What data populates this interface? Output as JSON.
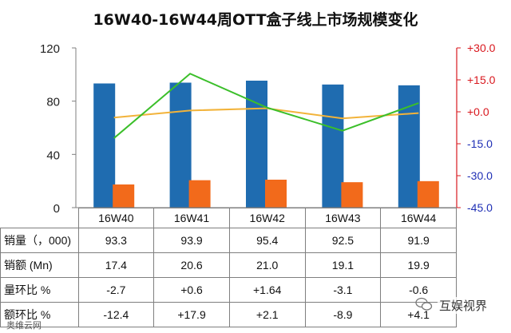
{
  "title": "16W40-16W44周OTT盒子线上市场规模变化",
  "chart_data": {
    "type": "bar",
    "categories": [
      "16W40",
      "16W41",
      "16W42",
      "16W43",
      "16W44"
    ],
    "series": [
      {
        "name": "销量（，000)",
        "values": [
          93.3,
          93.9,
          95.4,
          92.5,
          91.9
        ],
        "axis": "left",
        "kind": "bar",
        "color": "#1f6cb0"
      },
      {
        "name": "销额 (Mn)",
        "values": [
          17.4,
          20.6,
          21.0,
          19.1,
          19.9
        ],
        "axis": "left",
        "kind": "bar",
        "color": "#f26a1b"
      },
      {
        "name": "量环比 %",
        "values": [
          -2.7,
          0.6,
          1.64,
          -3.1,
          -0.6
        ],
        "axis": "right",
        "kind": "line",
        "color": "#f2b33a"
      },
      {
        "name": "额环比 %",
        "values": [
          -12.4,
          17.9,
          2.1,
          -8.9,
          4.1
        ],
        "axis": "right",
        "kind": "line",
        "color": "#3bbf2a"
      }
    ],
    "y_left": {
      "ylim": [
        0,
        120
      ],
      "ticks": [
        "0",
        "40",
        "80",
        "120"
      ]
    },
    "y_right": {
      "ylim": [
        -45,
        30
      ],
      "ticks": [
        "+30.0",
        "+15.0",
        "+0.0",
        "-15.0",
        "-30.0",
        "-45.0"
      ],
      "color": "#d9181e"
    },
    "grid": false
  },
  "table": {
    "header": [
      "16W40",
      "16W41",
      "16W42",
      "16W43",
      "16W44"
    ],
    "rows": [
      {
        "label": "销量（，000)",
        "cells": [
          "93.3",
          "93.9",
          "95.4",
          "92.5",
          "91.9"
        ]
      },
      {
        "label": "销额 (Mn)",
        "cells": [
          "17.4",
          "20.6",
          "21.0",
          "19.1",
          "19.9"
        ]
      },
      {
        "label": "量环比 %",
        "cells": [
          "-2.7",
          "+0.6",
          "+1.64",
          "-3.1",
          "-0.6"
        ]
      },
      {
        "label": "额环比 %",
        "cells": [
          "-12.4",
          "+17.9",
          "+2.1",
          "-8.9",
          "+4.1"
        ]
      }
    ]
  },
  "watermark": "互娱视界",
  "credit": "奥维云网"
}
